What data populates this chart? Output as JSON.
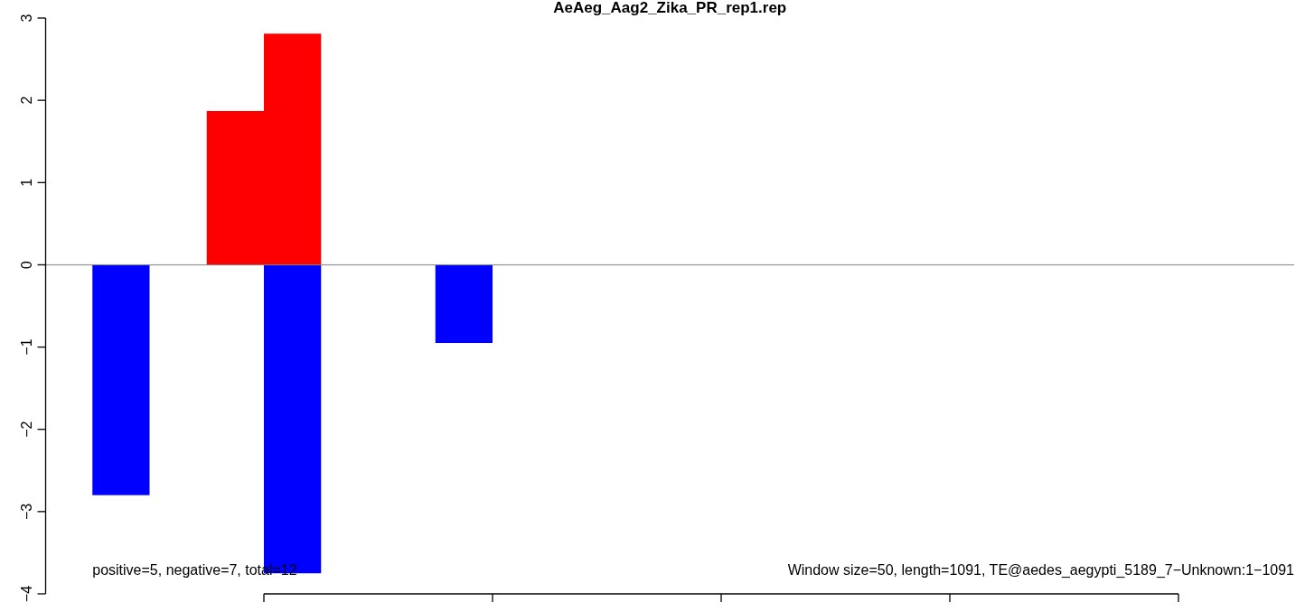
{
  "chart_data": {
    "type": "bar",
    "title": "AeAeg_Aag2_Zika_PR_rep1.rep",
    "categories": [
      null,
      null,
      null,
      null,
      null,
      null,
      null,
      null,
      null,
      null,
      null,
      null,
      null,
      null,
      null,
      null,
      null,
      null,
      null,
      null,
      null,
      null
    ],
    "series": [
      {
        "color": "#ff0000",
        "values": [
          null,
          null,
          null,
          1.87,
          2.81,
          null,
          null,
          null,
          null,
          null,
          null,
          null,
          null,
          null,
          null,
          null,
          null,
          null,
          null,
          null,
          null,
          null
        ]
      },
      {
        "color": "#0000ff",
        "values": [
          null,
          -2.8,
          null,
          null,
          -3.75,
          null,
          null,
          -0.95,
          null,
          null,
          null,
          null,
          null,
          null,
          null,
          null,
          null,
          null,
          null,
          null,
          null,
          null
        ]
      }
    ],
    "ylim": [
      -4,
      3
    ],
    "yticks": [
      {
        "value": -4,
        "label": "−4"
      },
      {
        "value": -3,
        "label": "−3"
      },
      {
        "value": -2,
        "label": "−2"
      },
      {
        "value": -1,
        "label": "−1"
      },
      0,
      1,
      2,
      3
    ],
    "ref_lines": [
      {
        "axis": "y",
        "value": 0,
        "color": "#808080"
      }
    ],
    "annotations": [
      "positive=5, negative=7, total=12",
      "Window size=50, length=1091, TE@aedes_aegypti_5189_7−Unknown:1−1091"
    ]
  }
}
